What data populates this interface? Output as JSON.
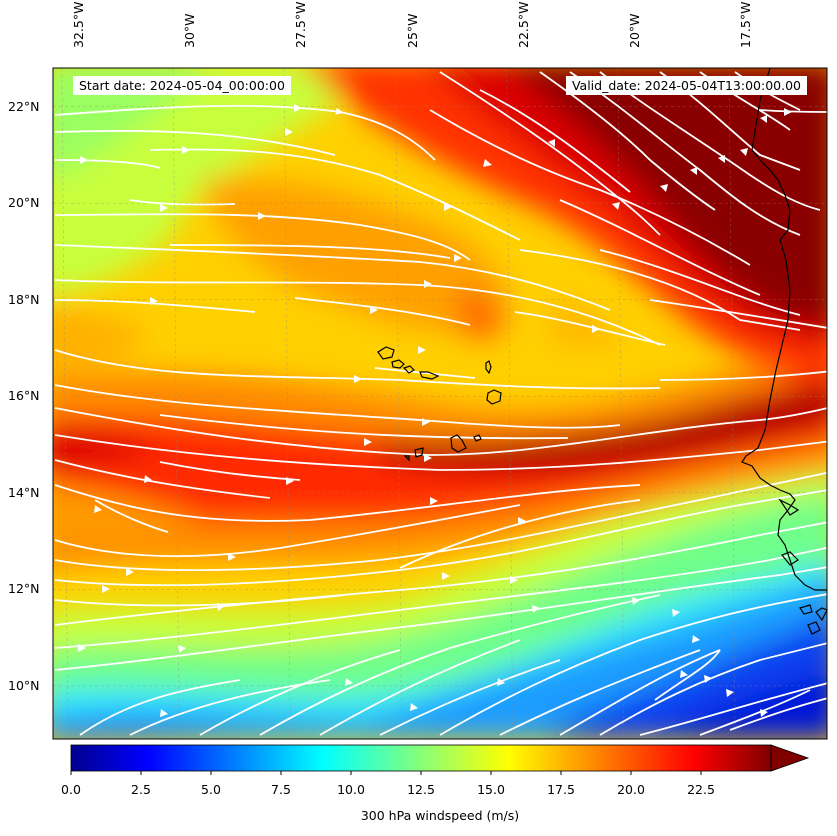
{
  "map": {
    "field": "300 hPa windspeed",
    "extent": {
      "lon_min": -32.7,
      "lon_max": -15.3,
      "lat_min": 8.9,
      "lat_max": 22.8
    },
    "lon_ticks": [
      "32.5°W",
      "30°W",
      "27.5°W",
      "25°W",
      "22.5°W",
      "20°W",
      "17.5°W"
    ],
    "lon_tick_values": [
      -32.5,
      -30,
      -27.5,
      -25,
      -22.5,
      -20,
      -17.5
    ],
    "lat_ticks": [
      "10°N",
      "12°N",
      "14°N",
      "16°N",
      "18°N",
      "20°N",
      "22°N"
    ],
    "lat_tick_values": [
      10,
      12,
      14,
      16,
      18,
      20,
      22
    ],
    "start_date": "Start date: 2024-05-04_00:00:00",
    "valid_date": "Valid_date: 2024-05-04T13:00:00.00",
    "features": [
      "Cabo Verde islands",
      "West African coastline"
    ]
  },
  "colorbar": {
    "label": "300 hPa windspeed (m/s)",
    "min": 0,
    "max": 25,
    "extend": "max",
    "colormap": "jet",
    "ticks": [
      "0.0",
      "2.5",
      "5.0",
      "7.5",
      "10.0",
      "12.5",
      "15.0",
      "17.5",
      "20.0",
      "22.5"
    ],
    "tick_values": [
      0,
      2.5,
      5,
      7.5,
      10,
      12.5,
      15,
      17.5,
      20,
      22.5
    ]
  },
  "colors": {
    "streamline": "#ffffff",
    "coastline": "#000000",
    "gridline": "#888888"
  }
}
